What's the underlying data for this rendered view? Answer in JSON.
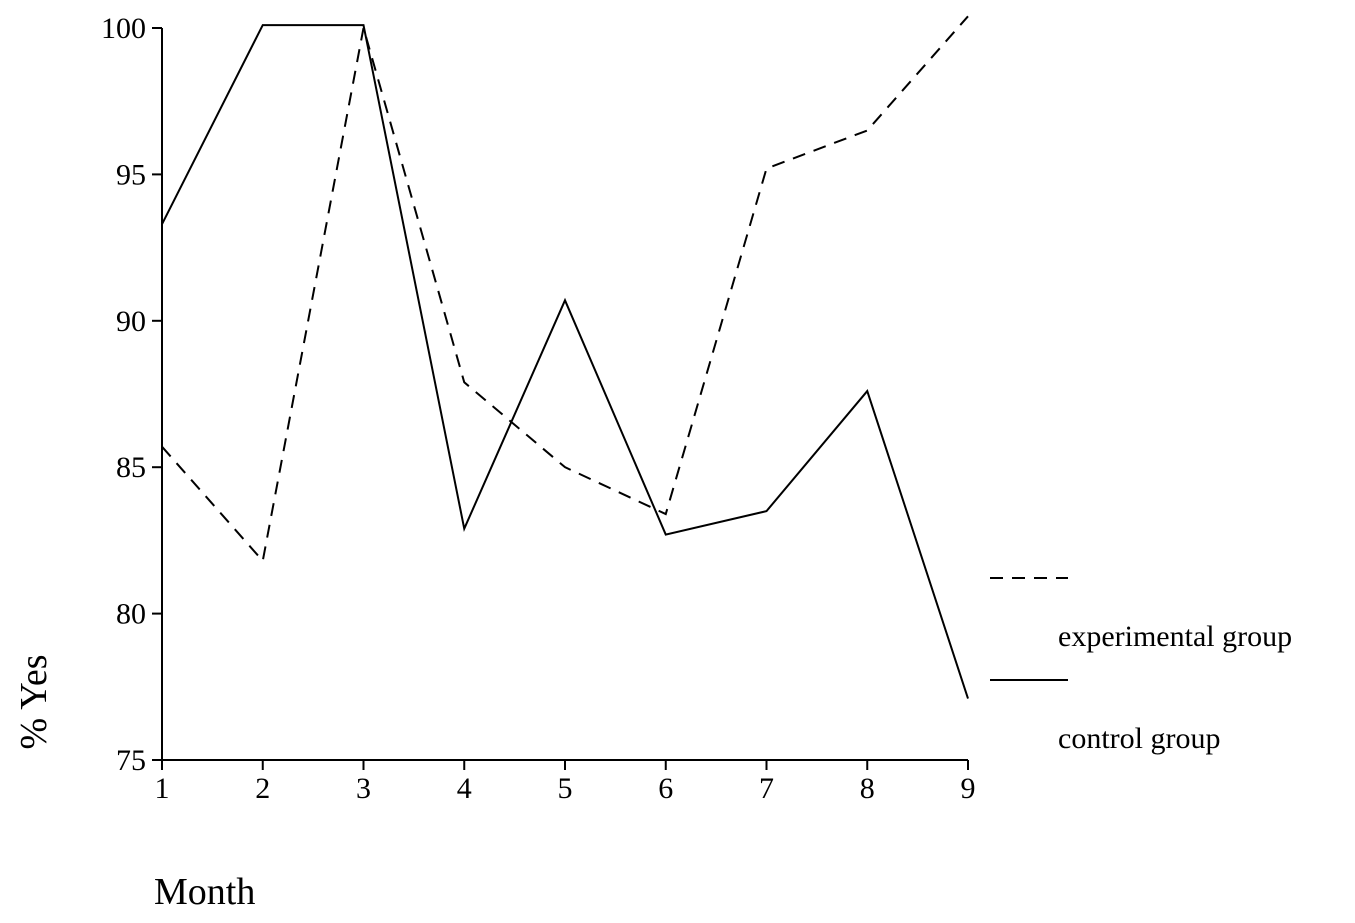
{
  "chart_data": {
    "type": "line",
    "title": "",
    "xlabel": "Month",
    "ylabel": "% Yes",
    "x": [
      1,
      2,
      3,
      4,
      5,
      6,
      7,
      8,
      9
    ],
    "x_tick_labels": [
      "1",
      "2",
      "3",
      "4",
      "5",
      "6",
      "7",
      "8",
      "9"
    ],
    "ylim": [
      75,
      100
    ],
    "y_ticks": [
      75,
      80,
      85,
      90,
      95,
      100
    ],
    "y_tick_labels": [
      "75",
      "80",
      "85",
      "90",
      "95",
      "100"
    ],
    "grid": false,
    "legend_position": "right",
    "series": [
      {
        "name": "experimental group",
        "line_style": "dashed",
        "color": "#000000",
        "values": [
          85.7,
          81.8,
          100,
          87.9,
          85.0,
          83.4,
          95.2,
          96.5,
          100.4
        ]
      },
      {
        "name": "control group",
        "line_style": "solid",
        "color": "#000000",
        "values": [
          93.3,
          100.1,
          100.1,
          82.9,
          90.7,
          82.7,
          83.5,
          87.6,
          77.1
        ]
      }
    ]
  }
}
